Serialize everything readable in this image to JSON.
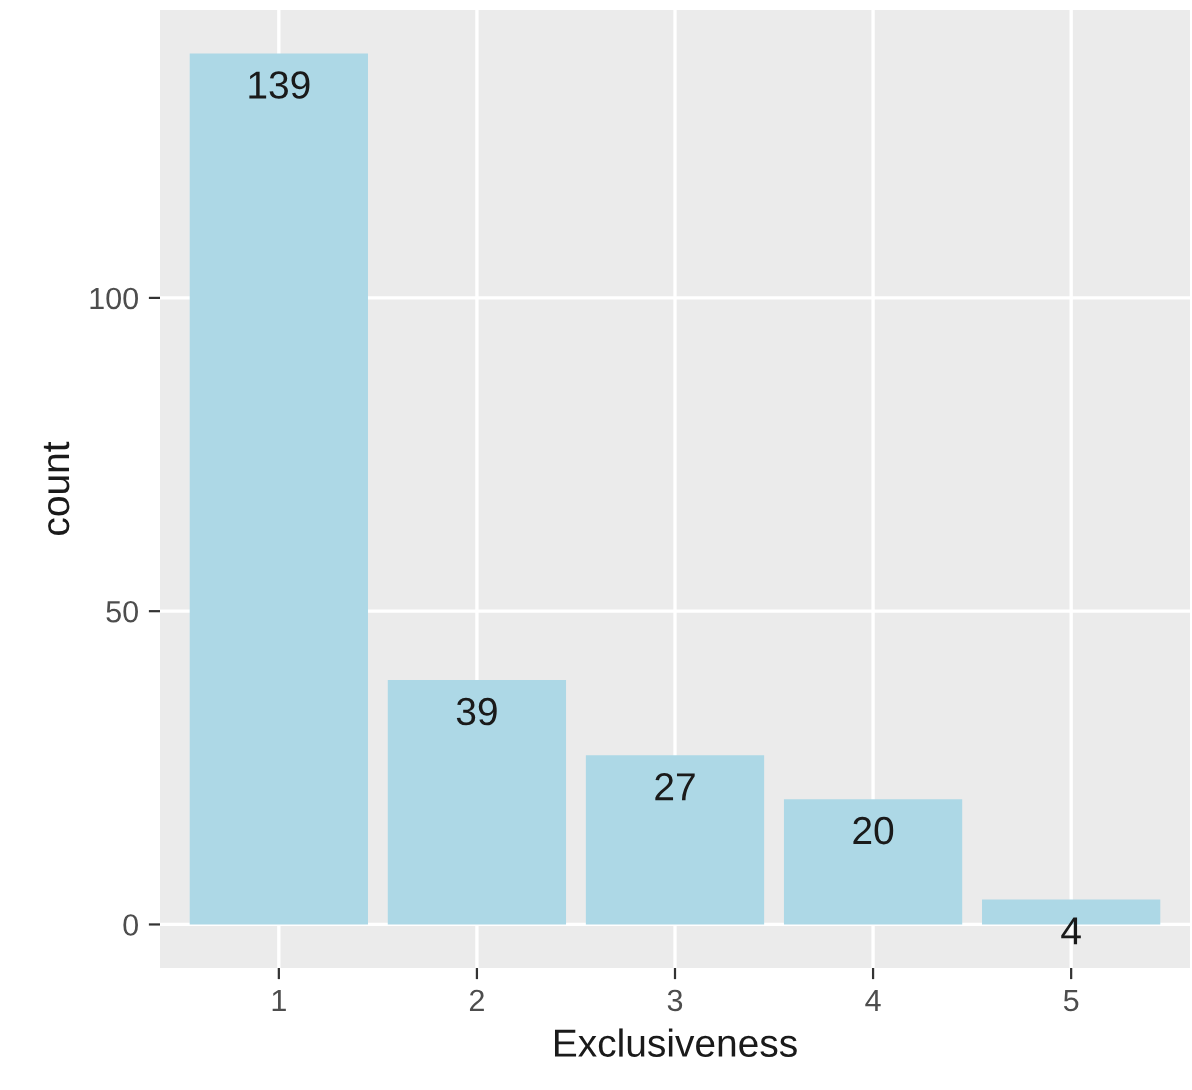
{
  "chart_data": {
    "type": "bar",
    "xlabel": "Exclusiveness",
    "ylabel": "count",
    "categories": [
      "1",
      "2",
      "3",
      "4",
      "5"
    ],
    "values": [
      139,
      39,
      27,
      20,
      4
    ],
    "color": "#add8e6",
    "ylim": [
      -6.95,
      145.95
    ],
    "yticks": [
      0,
      50,
      100
    ],
    "grid": true,
    "data_labels": true
  }
}
